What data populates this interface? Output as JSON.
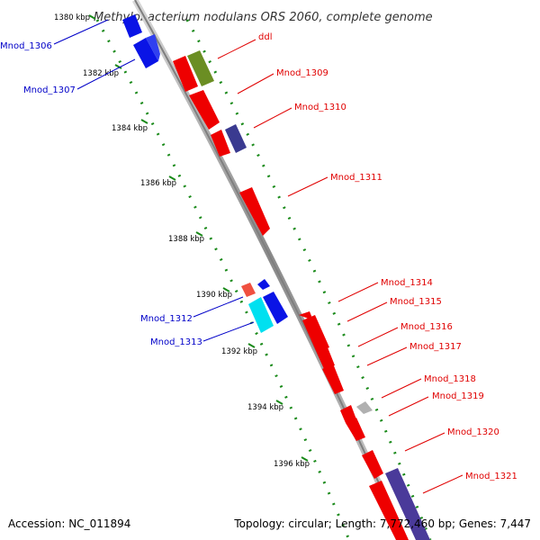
{
  "title": "Methylobacterium nodulans ORS 2060, complete genome",
  "footer": {
    "accession": "Accession: NC_011894",
    "stats": "Topology: circular; Length: 7,772,460 bp; Genes: 7,447"
  },
  "colors": {
    "backbone": "#8c8c8c",
    "tick": "#1a8a1a",
    "label_forward": "#e00000",
    "label_reverse": "#0000c8"
  },
  "ticks": [
    {
      "label": "1380 kbp"
    },
    {
      "label": "1382 kbp"
    },
    {
      "label": "1384 kbp"
    },
    {
      "label": "1386 kbp"
    },
    {
      "label": "1388 kbp"
    },
    {
      "label": "1390 kbp"
    },
    {
      "label": "1392 kbp"
    },
    {
      "label": "1394 kbp"
    },
    {
      "label": "1396 kbp"
    }
  ],
  "labels": {
    "left": [
      "Mnod_1306",
      "Mnod_1307",
      "Mnod_1312",
      "Mnod_1313"
    ],
    "right": [
      "ddl",
      "Mnod_1309",
      "Mnod_1310",
      "Mnod_1311",
      "Mnod_1314",
      "Mnod_1315",
      "Mnod_1316",
      "Mnod_1317",
      "Mnod_1318",
      "Mnod_1319",
      "Mnod_1320",
      "Mnod_1321"
    ]
  }
}
